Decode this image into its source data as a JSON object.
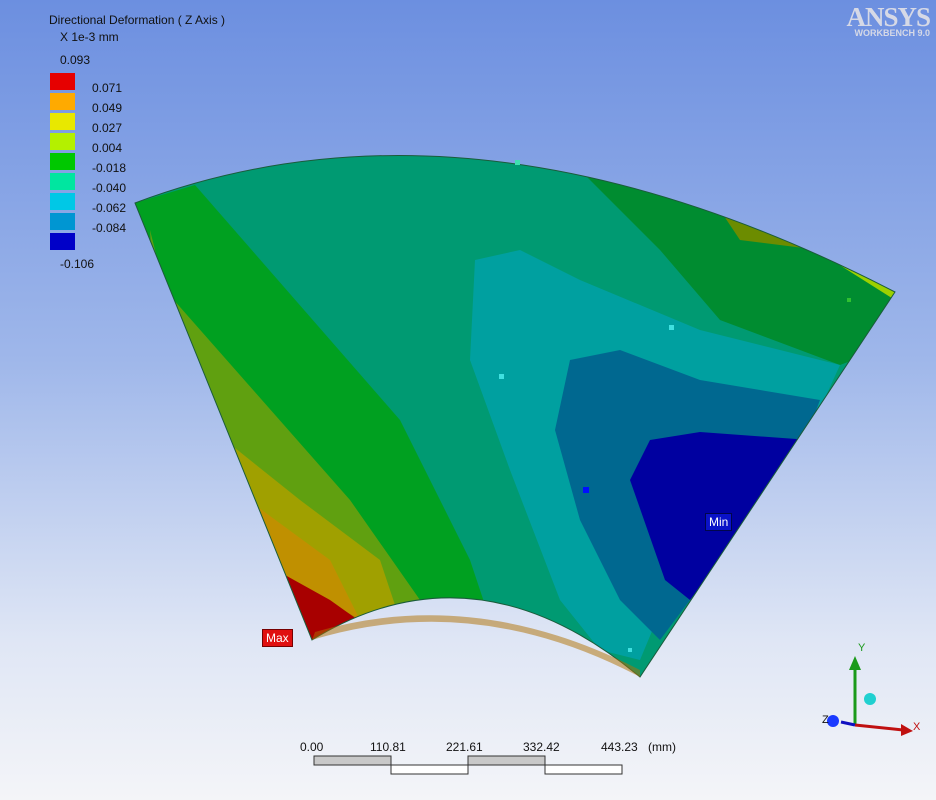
{
  "legend": {
    "title": "Directional Deformation ( Z Axis )",
    "units": "X 1e-3 mm",
    "max_value": "0.093",
    "min_value": "-0.106",
    "levels": [
      "0.071",
      "0.049",
      "0.027",
      "0.004",
      "-0.018",
      "-0.040",
      "-0.062",
      "-0.084"
    ],
    "colors": [
      "#e60000",
      "#ffaa00",
      "#e8e800",
      "#b4f000",
      "#00c800",
      "#00e6a0",
      "#00c8e6",
      "#0096d2",
      "#0000c8"
    ]
  },
  "logo": {
    "brand": "ANSYS",
    "subtitle": "WORKBENCH 9.0"
  },
  "probes": {
    "max_label": "Max",
    "min_label": "Min"
  },
  "scale": {
    "ticks": [
      "0.00",
      "110.81",
      "221.61",
      "332.42",
      "443.23"
    ],
    "unit": "(mm)"
  },
  "triad": {
    "x": "X",
    "y": "Y",
    "z": "Z"
  }
}
